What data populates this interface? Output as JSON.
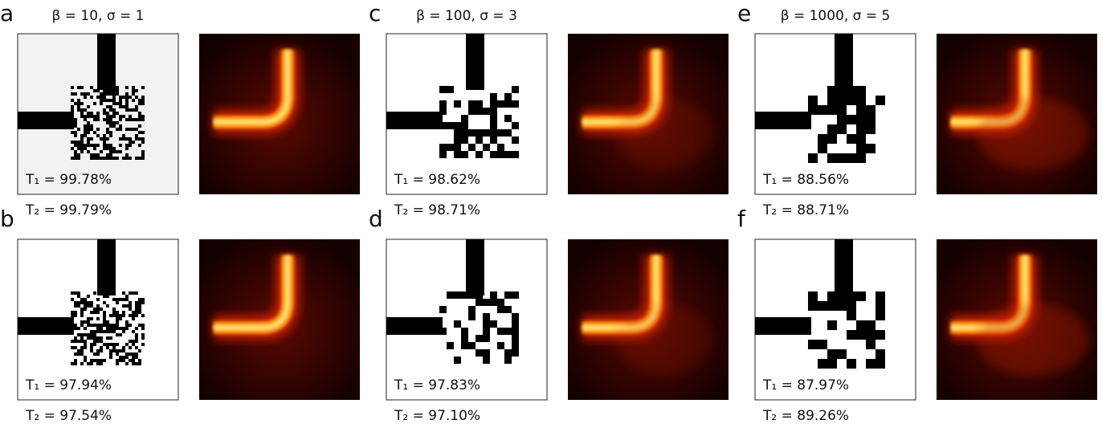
{
  "panels": [
    {
      "label": "a",
      "title": "β = 10, σ = 1",
      "t1": "T₁ = 99.78%",
      "t2": "T₂ = 99.79%"
    },
    {
      "label": "b",
      "t1": "T₁ = 97.94%",
      "t2": "T₂ = 97.54%"
    },
    {
      "label": "c",
      "title": "β = 100, σ = 3",
      "t1": "T₁ = 98.62%",
      "t2": "T₂ = 98.71%"
    },
    {
      "label": "d",
      "t1": "T₁ = 97.83%",
      "t2": "T₂ = 97.10%"
    },
    {
      "label": "e",
      "title": "β = 1000, σ = 5",
      "t1": "T₁ = 88.56%",
      "t2": "T₂ = 88.71%"
    },
    {
      "label": "f",
      "t1": "T₁ = 87.97%",
      "t2": "T₂ = 89.26%"
    }
  ]
}
